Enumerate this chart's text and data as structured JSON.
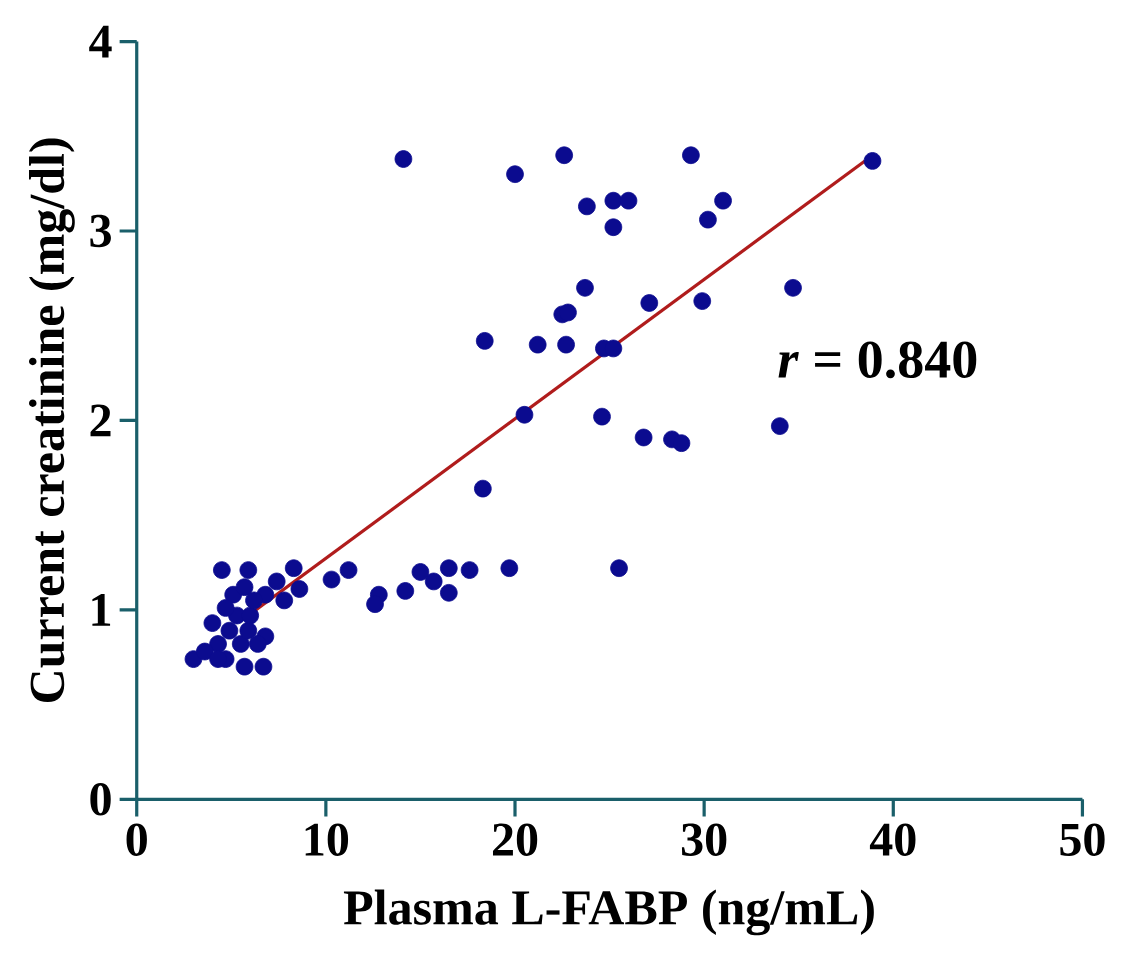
{
  "chart_data": {
    "type": "scatter",
    "xlabel": "Plasma L-FABP (ng/mL)",
    "ylabel": "Current creatinine (mg/dl)",
    "xlim": [
      0,
      50
    ],
    "ylim": [
      0,
      4
    ],
    "xticks": [
      0,
      10,
      20,
      30,
      40,
      50
    ],
    "yticks": [
      0,
      1,
      2,
      3,
      4
    ],
    "series": [
      {
        "marker": "circle",
        "color": "#0b0b8f",
        "x": [
          14.1,
          20.0,
          22.6,
          29.3,
          38.9,
          23.8,
          25.2,
          26.0,
          25.2,
          31.0,
          30.2,
          23.7,
          34.7,
          27.1,
          29.9,
          22.5,
          22.8,
          18.4,
          21.2,
          22.7,
          24.7,
          25.2,
          20.5,
          24.6,
          26.8,
          28.3,
          28.8,
          34.0,
          18.3,
          25.5,
          19.7,
          17.6,
          16.5,
          15.0,
          15.7,
          16.5,
          14.2,
          12.8,
          12.6,
          11.2,
          10.3,
          8.3,
          8.6,
          7.8,
          7.4,
          6.8,
          5.9,
          4.5,
          6.7,
          6.8,
          3.0,
          4.0,
          4.3,
          4.7,
          5.3,
          4.9,
          5.5,
          5.9,
          5.1,
          6.0,
          5.7,
          6.2,
          3.6,
          5.7,
          6.4,
          4.7,
          4.3
        ],
        "values": [
          3.38,
          3.3,
          3.4,
          3.4,
          3.37,
          3.13,
          3.16,
          3.16,
          3.02,
          3.16,
          3.06,
          2.7,
          2.7,
          2.62,
          2.63,
          2.56,
          2.57,
          2.42,
          2.4,
          2.4,
          2.38,
          2.38,
          2.03,
          2.02,
          1.91,
          1.9,
          1.88,
          1.97,
          1.64,
          1.22,
          1.22,
          1.21,
          1.22,
          1.2,
          1.15,
          1.09,
          1.1,
          1.08,
          1.03,
          1.21,
          1.16,
          1.22,
          1.11,
          1.05,
          1.15,
          1.08,
          1.21,
          1.21,
          0.7,
          0.86,
          0.74,
          0.93,
          0.82,
          0.74,
          0.97,
          0.89,
          0.82,
          0.89,
          1.08,
          0.97,
          1.12,
          1.05,
          0.78,
          0.7,
          0.82,
          1.01,
          0.74
        ]
      },
      {
        "type": "line",
        "marker": "none",
        "color": "#b01c1c",
        "x": [
          5.9,
          38.5
        ],
        "values": [
          0.97,
          3.37
        ]
      }
    ],
    "annotations": [
      "*r* = 0.840"
    ]
  }
}
